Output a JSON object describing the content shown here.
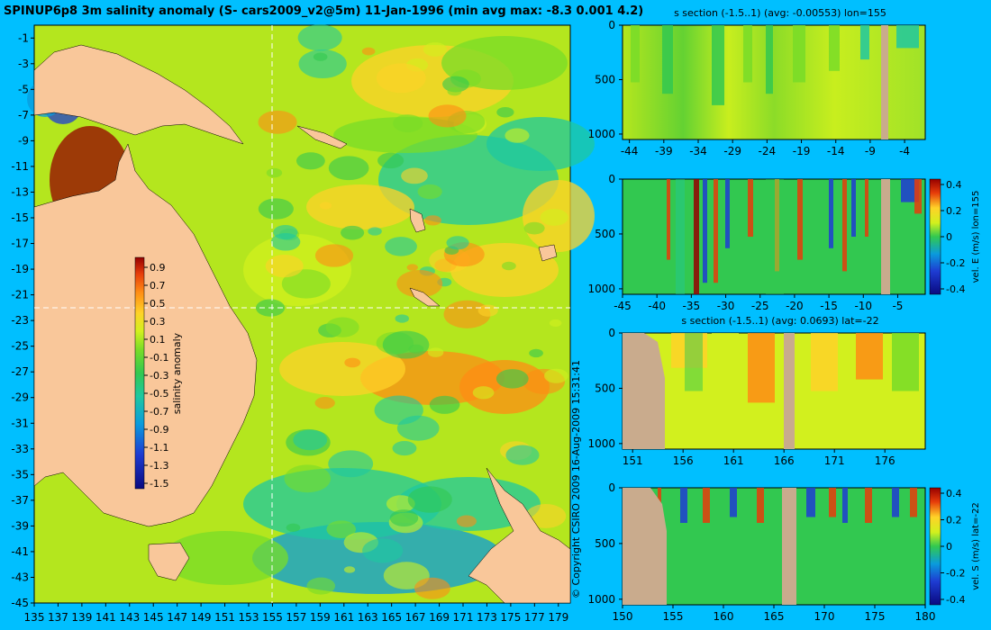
{
  "title": "SPINUP6p8 3m salinity anomaly (S- cars2009_v2@5m) 11-Jan-1996 (min avg max: -8.3 0.001 4.2)",
  "copyright": "© Copyright CSIRO 2009   16-Aug-2009 15:31:41",
  "colors": {
    "background": "#00bfff",
    "land": "#f9c79a",
    "section_land": "#c9ab8d",
    "colormap": [
      "#0a0a80",
      "#1e3cd2",
      "#0a9bdc",
      "#1ec8a0",
      "#32c850",
      "#78dc28",
      "#d2f01e",
      "#ffd228",
      "#ff8c14",
      "#e63c0a",
      "#960000"
    ]
  },
  "chart_data": [
    {
      "type": "heatmap",
      "name": "map",
      "xlim": [
        135,
        180
      ],
      "ylim": [
        -45,
        0
      ],
      "x_ticks": [
        "135",
        "137",
        "139",
        "141",
        "143",
        "145",
        "147",
        "149",
        "151",
        "153",
        "155",
        "157",
        "159",
        "161",
        "163",
        "165",
        "167",
        "169",
        "171",
        "173",
        "175",
        "177",
        "179"
      ],
      "y_ticks": [
        "-1",
        "-3",
        "-5",
        "-7",
        "-9",
        "-11",
        "-13",
        "-15",
        "-17",
        "-19",
        "-21",
        "-23",
        "-25",
        "-27",
        "-29",
        "-31",
        "-33",
        "-35",
        "-37",
        "-39",
        "-41",
        "-43",
        "-45"
      ],
      "section_lon": 155,
      "section_lat": -22,
      "colorbar": {
        "label": "salinity anomaly",
        "ticks": [
          "0.9",
          "0.7",
          "0.5",
          "0.3",
          "0.1",
          "-0.1",
          "-0.3",
          "-0.5",
          "-0.7",
          "-0.9",
          "-1.1",
          "-1.3",
          "-1.5"
        ]
      }
    },
    {
      "type": "heatmap",
      "name": "s-section-lon155",
      "title": "s section (-1.5..1) (avg: -0.00553) lon=155",
      "x_ticks": [
        "-44",
        "-39",
        "-34",
        "-29",
        "-24",
        "-19",
        "-14",
        "-9",
        "-4"
      ],
      "y_ticks": [
        "0",
        "500",
        "1000"
      ]
    },
    {
      "type": "heatmap",
      "name": "velE-section-lon155",
      "x_ticks": [
        "-45",
        "-40",
        "-35",
        "-30",
        "-25",
        "-20",
        "-15",
        "-10",
        "-5"
      ],
      "y_ticks": [
        "0",
        "500",
        "1000"
      ],
      "colorbar": {
        "label": "vel. E (m/s) lon=155",
        "ticks": [
          "0.4",
          "0.2",
          "0",
          "-0.2",
          "-0.4"
        ]
      }
    },
    {
      "type": "heatmap",
      "name": "s-section-lat-22",
      "title": "s section (-1.5..1) (avg: 0.0693) lat=-22",
      "x_ticks": [
        "151",
        "156",
        "161",
        "166",
        "171",
        "176"
      ],
      "y_ticks": [
        "0",
        "500",
        "1000"
      ]
    },
    {
      "type": "heatmap",
      "name": "velS-section-lat-22",
      "x_ticks": [
        "150",
        "155",
        "160",
        "165",
        "170",
        "175",
        "180"
      ],
      "y_ticks": [
        "0",
        "500",
        "1000"
      ],
      "colorbar": {
        "label": "vel. S (m/s) lat=-22",
        "ticks": [
          "0.4",
          "0.2",
          "0",
          "-0.2",
          "-0.4"
        ]
      }
    }
  ]
}
